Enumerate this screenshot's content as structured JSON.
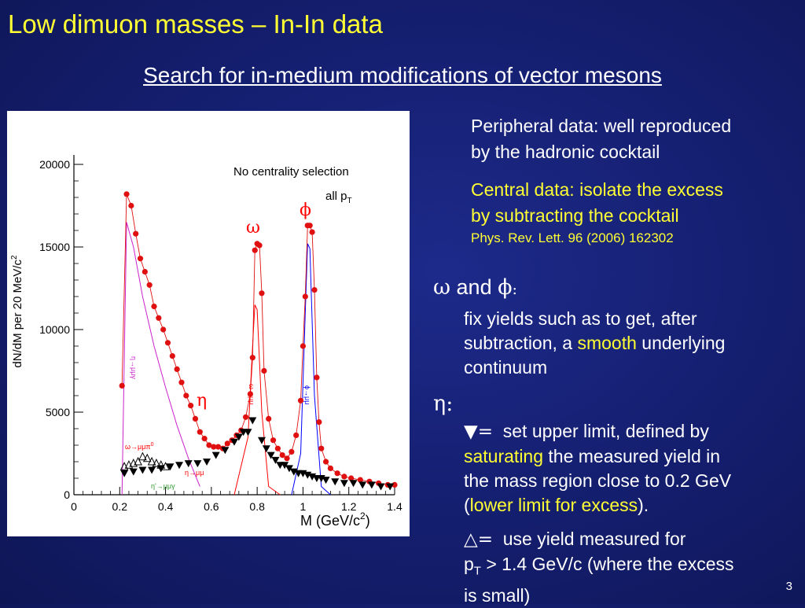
{
  "slide": {
    "title": "Low dimuon masses – In-In data",
    "subtitle": "Search for in-medium modifications of vector mesons",
    "page_number": "3"
  },
  "right_text": {
    "peripheral": [
      "Peripheral data: well reproduced",
      "by the hadronic cocktail"
    ],
    "central": [
      "Central data: isolate the excess",
      "by subtracting the cocktail"
    ],
    "reference": "Phys. Rev. Lett. 96 (2006) 162302"
  },
  "bullets": {
    "omega_phi_head": {
      "sym1": "ω",
      "and": " and ",
      "sym2": "ϕ",
      "colon": ":"
    },
    "omega_phi_body": {
      "l1": "fix yields such as to get, after",
      "l2a": "subtraction, a ",
      "l2b": "smooth",
      "l2c": " underlying",
      "l3": "continuum"
    },
    "eta_head": {
      "sym": "η",
      "colon": ":"
    },
    "eta_upper": {
      "marker": "▼=",
      "l1": "set upper limit, defined by",
      "l2a": "saturating",
      "l2b": " the measured yield in",
      "l3": "the mass region close to 0.2 GeV",
      "l4a": "(",
      "l4b": "lower limit for excess",
      "l4c": ")."
    },
    "eta_lower": {
      "marker": "△=",
      "l1": "use yield measured for",
      "l2a": "p",
      "l2sub": "T",
      "l2b": " > 1.4 GeV/c (where the excess",
      "l3": "is small)"
    }
  },
  "plot": {
    "corner_text": "No centrality selection",
    "allpt": "all p",
    "allpt_sub": "T",
    "xlabel": "M (GeV/c",
    "xlabel_sup": "2",
    "xlabel_end": ")",
    "ylabel": "dN/dM per 20 MeV/c",
    "ylabel_sup": "2",
    "xticks": [
      "0",
      "0.2",
      "0.4",
      "0.6",
      "0.8",
      "1",
      "1.2",
      "1.4"
    ],
    "yticks": [
      "0",
      "5000",
      "10000",
      "15000",
      "20000"
    ],
    "annotations": {
      "omega": "ω",
      "phi": "ϕ",
      "eta": "η",
      "eta_dalitz": "η→μμγ",
      "eta_2mu": "η→μμ",
      "omega_dalitz": "ω→μμπ",
      "omega_dalitz_sup": "0",
      "etap": "η'→μμγ",
      "omega_2mu": "ω→μμ",
      "phi_2mu": "ϕ→μμ"
    },
    "colors": {
      "data": "#e01010",
      "eta_dalitz": "#cc22cc",
      "omega": "#ff0000",
      "phi": "#0000ff",
      "etap": "#339933",
      "lower": "#000000"
    }
  },
  "chart_data": {
    "type": "scatter",
    "xlabel": "M (GeV/c²)",
    "ylabel": "dN/dM per 20 MeV/c²",
    "xlim": [
      0,
      1.4
    ],
    "ylim": [
      0,
      20000
    ],
    "x_ticks": [
      0,
      0.2,
      0.4,
      0.6,
      0.8,
      1,
      1.2,
      1.4
    ],
    "y_ticks": [
      0,
      5000,
      10000,
      15000,
      20000
    ],
    "series": [
      {
        "marker": "circle",
        "color": "#e01010",
        "points": [
          [
            0.21,
            6600
          ],
          [
            0.23,
            18200
          ],
          [
            0.25,
            17500
          ],
          [
            0.27,
            15800
          ],
          [
            0.29,
            14300
          ],
          [
            0.31,
            13500
          ],
          [
            0.33,
            12700
          ],
          [
            0.35,
            11400
          ],
          [
            0.37,
            10700
          ],
          [
            0.39,
            10000
          ],
          [
            0.41,
            9200
          ],
          [
            0.43,
            8400
          ],
          [
            0.45,
            7600
          ],
          [
            0.47,
            6800
          ],
          [
            0.49,
            6000
          ],
          [
            0.51,
            5400
          ],
          [
            0.53,
            4600
          ],
          [
            0.55,
            3800
          ],
          [
            0.57,
            3400
          ],
          [
            0.59,
            3000
          ],
          [
            0.61,
            2900
          ],
          [
            0.63,
            2900
          ],
          [
            0.65,
            2800
          ],
          [
            0.67,
            3100
          ],
          [
            0.69,
            3300
          ],
          [
            0.71,
            3600
          ],
          [
            0.73,
            3900
          ],
          [
            0.75,
            4700
          ],
          [
            0.77,
            6100
          ],
          [
            0.78,
            8300
          ],
          [
            0.79,
            14800
          ],
          [
            0.8,
            15200
          ],
          [
            0.81,
            15100
          ],
          [
            0.82,
            12200
          ],
          [
            0.83,
            7500
          ],
          [
            0.85,
            4600
          ],
          [
            0.87,
            3300
          ],
          [
            0.89,
            2800
          ],
          [
            0.91,
            2400
          ],
          [
            0.93,
            2200
          ],
          [
            0.95,
            2600
          ],
          [
            0.97,
            3600
          ],
          [
            0.99,
            5700
          ],
          [
            1.0,
            9000
          ],
          [
            1.01,
            12000
          ],
          [
            1.02,
            16300
          ],
          [
            1.03,
            16300
          ],
          [
            1.04,
            15900
          ],
          [
            1.05,
            12400
          ],
          [
            1.06,
            7100
          ],
          [
            1.07,
            4400
          ],
          [
            1.08,
            2800
          ],
          [
            1.1,
            2000
          ],
          [
            1.12,
            1600
          ],
          [
            1.15,
            1300
          ],
          [
            1.18,
            1100
          ],
          [
            1.21,
            1000
          ],
          [
            1.25,
            900
          ],
          [
            1.29,
            800
          ],
          [
            1.33,
            700
          ],
          [
            1.37,
            600
          ],
          [
            1.4,
            600
          ]
        ]
      },
      {
        "marker": "triangle-down",
        "color": "#000000",
        "points": [
          [
            0.22,
            1300
          ],
          [
            0.26,
            1400
          ],
          [
            0.3,
            1500
          ],
          [
            0.34,
            1500
          ],
          [
            0.38,
            1600
          ],
          [
            0.42,
            1700
          ],
          [
            0.46,
            1800
          ],
          [
            0.5,
            1900
          ],
          [
            0.54,
            1900
          ],
          [
            0.58,
            2000
          ],
          [
            0.62,
            2400
          ],
          [
            0.66,
            2700
          ],
          [
            0.7,
            3200
          ],
          [
            0.72,
            3500
          ],
          [
            0.74,
            3800
          ],
          [
            0.76,
            3800
          ],
          [
            0.78,
            4500
          ],
          [
            0.82,
            3300
          ],
          [
            0.84,
            2800
          ],
          [
            0.86,
            2400
          ],
          [
            0.88,
            2100
          ],
          [
            0.9,
            1800
          ],
          [
            0.92,
            1800
          ],
          [
            0.94,
            1600
          ],
          [
            0.96,
            1400
          ],
          [
            0.98,
            1300
          ],
          [
            1.0,
            1300
          ],
          [
            1.02,
            1200
          ],
          [
            1.04,
            1100
          ],
          [
            1.06,
            1000
          ],
          [
            1.08,
            1000
          ],
          [
            1.1,
            900
          ],
          [
            1.14,
            800
          ],
          [
            1.18,
            700
          ],
          [
            1.22,
            700
          ],
          [
            1.26,
            600
          ],
          [
            1.3,
            600
          ],
          [
            1.34,
            500
          ],
          [
            1.38,
            500
          ]
        ]
      },
      {
        "marker": "triangle-up",
        "color": "#000000",
        "points": [
          [
            0.22,
            1700
          ],
          [
            0.24,
            1800
          ],
          [
            0.26,
            1900
          ],
          [
            0.28,
            2000
          ],
          [
            0.3,
            2300
          ],
          [
            0.32,
            2200
          ],
          [
            0.34,
            2000
          ],
          [
            0.36,
            1900
          ],
          [
            0.38,
            1800
          ],
          [
            0.4,
            1700
          ]
        ]
      },
      {
        "name": "η→μμγ",
        "type": "line",
        "color": "#cc22cc",
        "points": [
          [
            0.21,
            0
          ],
          [
            0.23,
            16500
          ],
          [
            0.26,
            15000
          ],
          [
            0.3,
            12000
          ],
          [
            0.35,
            9000
          ],
          [
            0.4,
            6500
          ],
          [
            0.45,
            4200
          ],
          [
            0.5,
            2200
          ],
          [
            0.55,
            500
          ]
        ]
      },
      {
        "name": "ω→μμ",
        "type": "line",
        "color": "#ff0000",
        "points": [
          [
            0.7,
            0
          ],
          [
            0.76,
            3500
          ],
          [
            0.78,
            9000
          ],
          [
            0.79,
            11500
          ],
          [
            0.8,
            11200
          ],
          [
            0.82,
            5000
          ],
          [
            0.85,
            500
          ],
          [
            0.9,
            0
          ]
        ]
      },
      {
        "name": "ϕ→μμ",
        "type": "line",
        "color": "#0000ff",
        "points": [
          [
            0.95,
            0
          ],
          [
            0.99,
            2500
          ],
          [
            1.01,
            11000
          ],
          [
            1.02,
            15200
          ],
          [
            1.03,
            14900
          ],
          [
            1.05,
            6000
          ],
          [
            1.08,
            500
          ],
          [
            1.12,
            0
          ]
        ]
      }
    ]
  }
}
